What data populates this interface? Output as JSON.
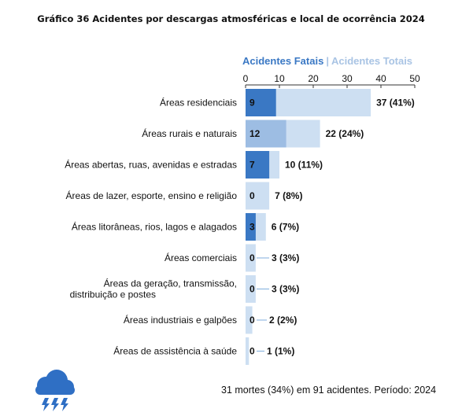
{
  "title": "Gráfico 36 Acidentes por descargas atmosféricas e local de ocorrência 2024",
  "legend": {
    "fatal": "Acidentes Fatais",
    "separator": "|",
    "total": "Acidentes Totais"
  },
  "footer": "31 mortes (34%) em 91 acidentes. Período: 2024",
  "colors": {
    "total": "#cddff2",
    "fatal_dark": "#3a78c4",
    "fatal_light": "#9dbde3",
    "connector": "#7faedd",
    "icon": "#2f6fc4"
  },
  "chart_data": {
    "type": "bar",
    "orientation": "horizontal",
    "xlim": [
      0,
      50
    ],
    "xticks": [
      "0",
      "10",
      "20",
      "30",
      "40",
      "50"
    ],
    "categories": [
      "Áreas residenciais",
      "Áreas rurais e naturais",
      "Áreas abertas, ruas, avenidas e estradas",
      "Áreas de lazer, esporte, ensino e religião",
      "Áreas litorâneas, rios, lagos e alagados",
      "Áreas comerciais",
      "Áreas da geração, transmissão, distribuição e postes",
      "Áreas industriais e galpões",
      "Áreas de assistência à saúde"
    ],
    "series": [
      {
        "name": "Acidentes Fatais",
        "values": [
          9,
          12,
          7,
          0,
          3,
          0,
          0,
          0,
          0
        ],
        "labels": [
          "9",
          "12",
          "7",
          "0",
          "3",
          "0",
          "0",
          "0",
          "0"
        ]
      },
      {
        "name": "Acidentes Totais",
        "values": [
          37,
          22,
          10,
          7,
          6,
          3,
          3,
          2,
          1
        ],
        "labels": [
          "37 (41%)",
          "22 (24%)",
          "10 (11%)",
          "7 (8%)",
          "6 (7%)",
          "3 (3%)",
          "3 (3%)",
          "2 (2%)",
          "1 (1%)"
        ]
      }
    ]
  }
}
